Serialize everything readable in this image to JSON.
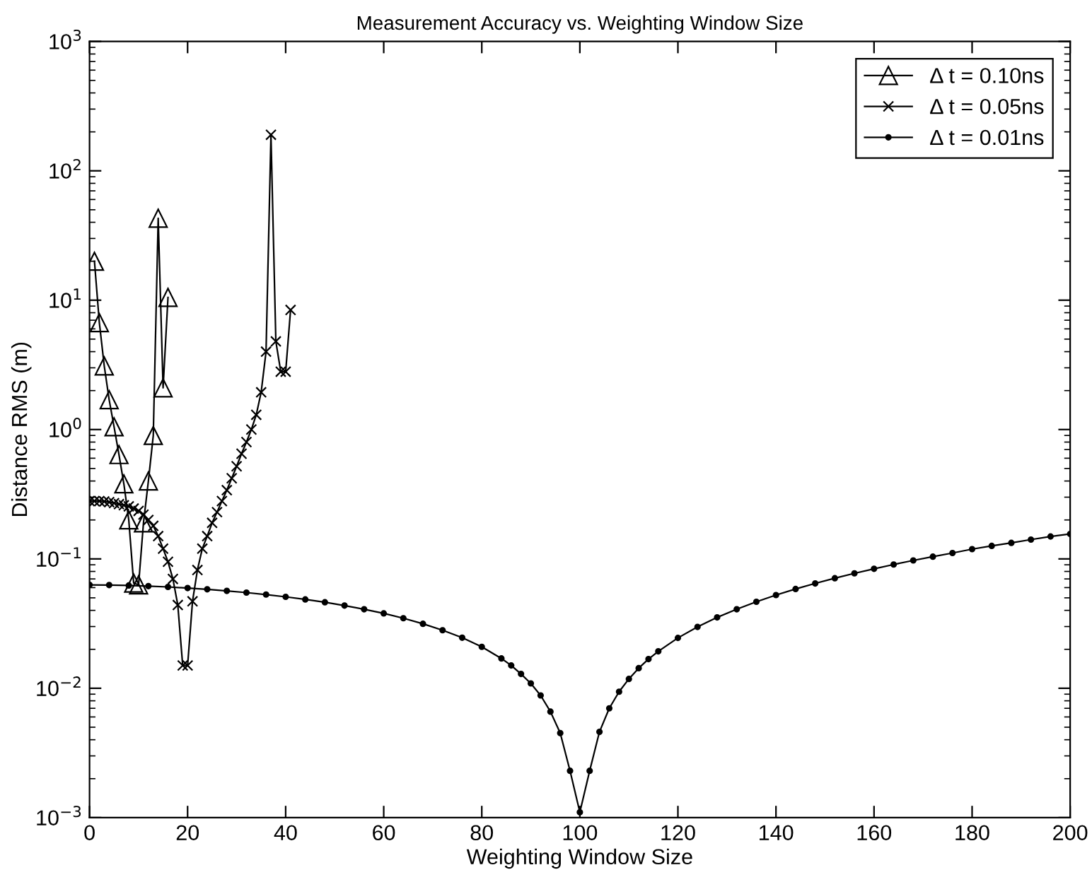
{
  "chart_data": {
    "type": "line",
    "title": "Measurement Accuracy vs. Weighting Window Size",
    "xlabel": "Weighting Window Size",
    "ylabel": "Distance RMS (m)",
    "log": "y",
    "xlim": [
      0,
      200
    ],
    "xticks": [
      0,
      20,
      40,
      60,
      80,
      100,
      120,
      140,
      160,
      180,
      200
    ],
    "ylim": [
      0.001,
      1000
    ],
    "yticks": [
      {
        "value": 0.001,
        "label": "10$^{−3}$"
      },
      {
        "value": 0.01,
        "label": "10$^{−2}$"
      },
      {
        "value": 0.1,
        "label": "10$^{−1}$"
      },
      {
        "value": 1,
        "label": "10$^{0}$"
      },
      {
        "value": 10,
        "label": "10$^{1}$"
      },
      {
        "value": 100,
        "label": "10$^{2}$"
      },
      {
        "value": 1000,
        "label": "10$^{3}$"
      }
    ],
    "grid": false,
    "legend": "top right",
    "series": [
      {
        "name": "Δ t = 0.10ns",
        "color": "#000000",
        "marker": "triangle",
        "x": [
          1,
          2,
          3,
          4,
          5,
          6,
          7,
          8,
          9,
          10,
          11,
          12,
          13,
          14,
          15,
          16
        ],
        "values": [
          20,
          6.7,
          3.1,
          1.7,
          1.05,
          0.64,
          0.38,
          0.2,
          0.065,
          0.063,
          0.19,
          0.4,
          0.9,
          43,
          2.1,
          10.5
        ]
      },
      {
        "name": "Δ t = 0.05ns",
        "color": "#000000",
        "marker": "cross",
        "x": [
          0,
          1,
          2,
          3,
          4,
          5,
          6,
          7,
          8,
          9,
          10,
          11,
          12,
          13,
          14,
          15,
          16,
          17,
          18,
          19,
          20,
          21,
          22,
          23,
          24,
          25,
          26,
          27,
          28,
          29,
          30,
          31,
          32,
          33,
          34,
          35,
          36,
          37,
          38,
          39,
          40,
          41
        ],
        "values": [
          0.28,
          0.28,
          0.28,
          0.278,
          0.275,
          0.27,
          0.265,
          0.26,
          0.255,
          0.245,
          0.235,
          0.22,
          0.2,
          0.18,
          0.15,
          0.12,
          0.095,
          0.07,
          0.044,
          0.015,
          0.015,
          0.047,
          0.082,
          0.12,
          0.15,
          0.19,
          0.23,
          0.28,
          0.34,
          0.42,
          0.52,
          0.65,
          0.8,
          1.0,
          1.3,
          1.94,
          4.0,
          190,
          4.8,
          2.8,
          2.8,
          8.4
        ]
      },
      {
        "name": "Δ t = 0.01ns",
        "color": "#000000",
        "marker": "circle",
        "x": [
          0,
          4,
          8,
          12,
          16,
          20,
          24,
          28,
          32,
          36,
          40,
          44,
          48,
          52,
          56,
          60,
          64,
          68,
          72,
          76,
          80,
          84,
          86,
          88,
          90,
          92,
          94,
          96,
          98,
          100,
          102,
          104,
          106,
          108,
          110,
          112,
          114,
          116,
          120,
          124,
          128,
          132,
          136,
          140,
          144,
          148,
          152,
          156,
          160,
          164,
          168,
          172,
          176,
          180,
          184,
          188,
          192,
          196,
          200
        ],
        "values": [
          0.063,
          0.0628,
          0.0623,
          0.0616,
          0.0607,
          0.0595,
          0.0582,
          0.0566,
          0.0549,
          0.053,
          0.0509,
          0.0486,
          0.0462,
          0.0436,
          0.0408,
          0.0379,
          0.0348,
          0.0315,
          0.0281,
          0.0246,
          0.0209,
          0.017,
          0.015,
          0.0129,
          0.0109,
          0.0088,
          0.0066,
          0.0045,
          0.0023,
          0.0011,
          0.0023,
          0.0046,
          0.007,
          0.0094,
          0.0118,
          0.0143,
          0.0168,
          0.0193,
          0.0245,
          0.0298,
          0.0353,
          0.0408,
          0.0466,
          0.0525,
          0.0585,
          0.0646,
          0.0709,
          0.0773,
          0.0838,
          0.0905,
          0.0973,
          0.104,
          0.111,
          0.119,
          0.126,
          0.133,
          0.141,
          0.149,
          0.156
        ]
      }
    ]
  }
}
